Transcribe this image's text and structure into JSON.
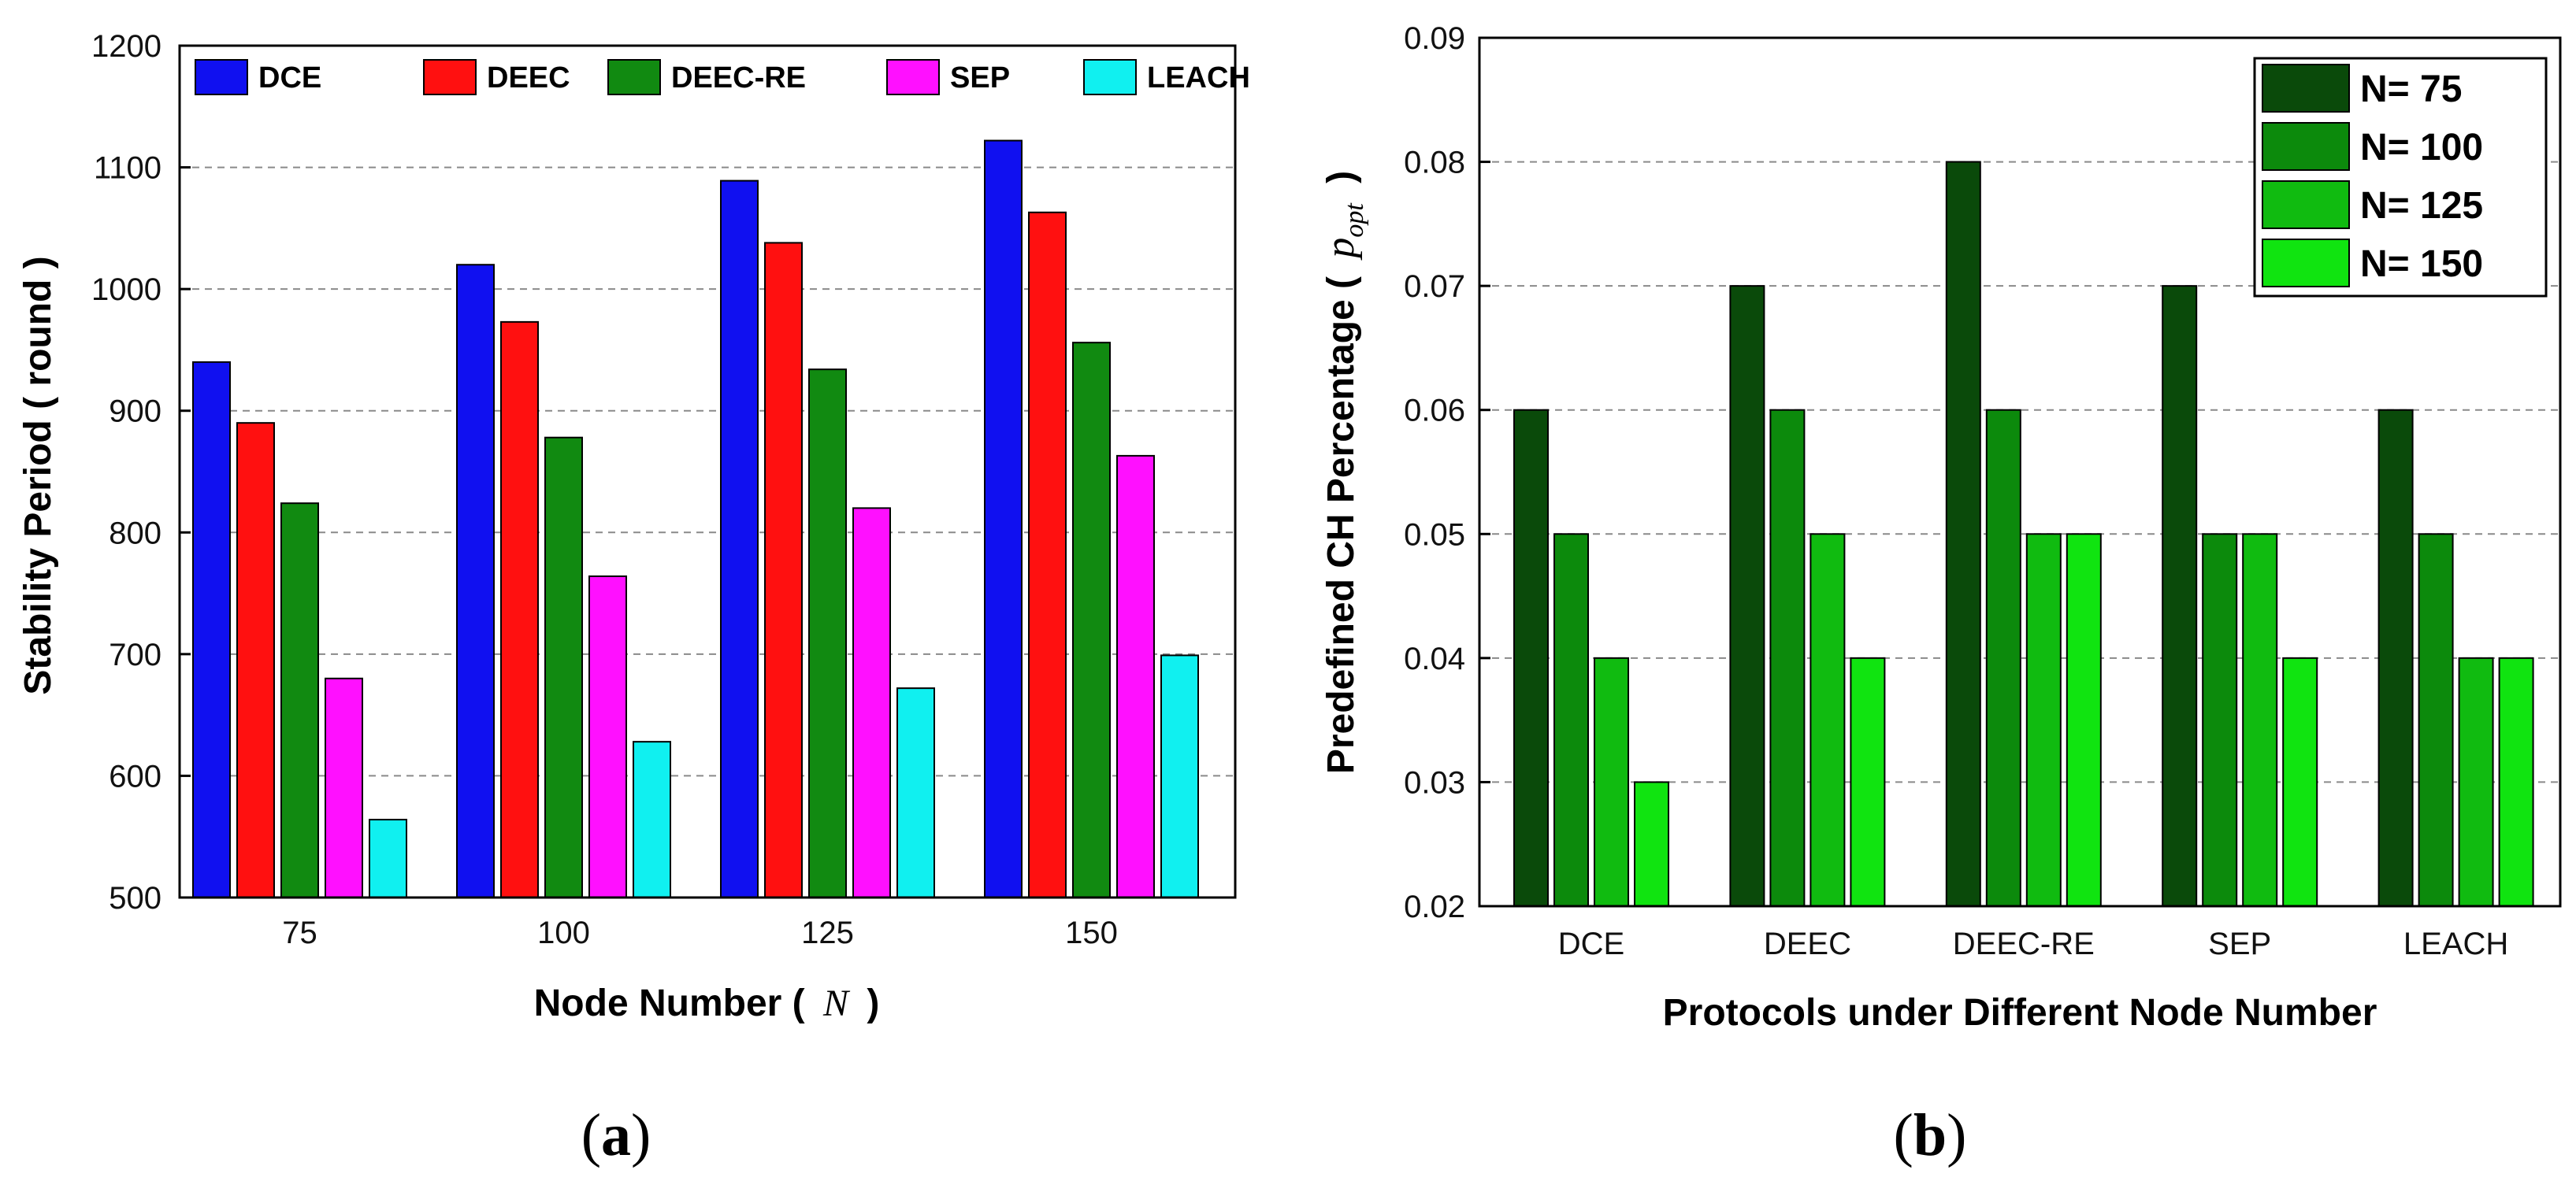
{
  "chart_data": [
    {
      "type": "bar",
      "panel": "(a)",
      "categories": [
        "75",
        "100",
        "125",
        "150"
      ],
      "series": [
        {
          "name": "DCE",
          "color": "#1010f0",
          "values": [
            940,
            1020,
            1089,
            1122
          ]
        },
        {
          "name": "DEEC",
          "color": "#ff1010",
          "values": [
            890,
            973,
            1038,
            1063
          ]
        },
        {
          "name": "DEEC-RE",
          "color": "#118a11",
          "values": [
            824,
            878,
            934,
            956
          ]
        },
        {
          "name": "SEP",
          "color": "#ff10ff",
          "values": [
            680,
            764,
            820,
            863
          ]
        },
        {
          "name": "LEACH",
          "color": "#10f0f0",
          "values": [
            564,
            628,
            672,
            699
          ]
        }
      ],
      "ylim": [
        500,
        1200
      ],
      "yticks": [
        "500",
        "600",
        "700",
        "800",
        "900",
        "1000",
        "1100",
        "1200"
      ],
      "grid": true,
      "legend_position": "top",
      "ylabel_text": "Stability Period ( round )",
      "xlabel_prefix": "Node Number (",
      "xlabel_var": "N",
      "xlabel_suffix": ")",
      "caption": {
        "open": "(",
        "letter": "a",
        "close": ")"
      }
    },
    {
      "type": "bar",
      "panel": "(b)",
      "categories": [
        "DCE",
        "DEEC",
        "DEEC-RE",
        "SEP",
        "LEACH"
      ],
      "series": [
        {
          "name": "N= 75",
          "color": "#0a4a0a",
          "values": [
            0.06,
            0.07,
            0.08,
            0.07,
            0.06
          ]
        },
        {
          "name": "N= 100",
          "color": "#0c8a0c",
          "values": [
            0.05,
            0.06,
            0.06,
            0.05,
            0.05
          ]
        },
        {
          "name": "N= 125",
          "color": "#10bb10",
          "values": [
            0.04,
            0.05,
            0.05,
            0.05,
            0.04
          ]
        },
        {
          "name": "N= 150",
          "color": "#10e410",
          "values": [
            0.03,
            0.04,
            0.05,
            0.04,
            0.04
          ]
        }
      ],
      "ylim": [
        0.02,
        0.09
      ],
      "yticks": [
        "0.02",
        "0.03",
        "0.04",
        "0.05",
        "0.06",
        "0.07",
        "0.08",
        "0.09"
      ],
      "grid": true,
      "legend_position": "top-right",
      "ylabel_prefix": "Predefined CH Percentage (",
      "ylabel_var": "p",
      "ylabel_sub": "opt",
      "ylabel_suffix": ")",
      "xlabel": "Protocols under Different Node Number",
      "caption": {
        "open": "(",
        "letter": "b",
        "close": ")"
      }
    }
  ]
}
